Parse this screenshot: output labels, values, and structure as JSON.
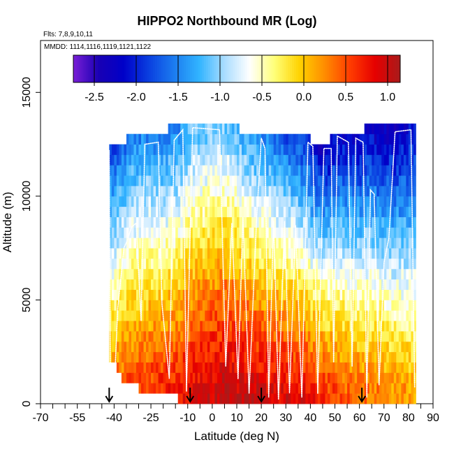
{
  "chart_data": {
    "type": "heatmap",
    "title": "HIPPO2 Northbound MR (Log)",
    "flights_label": "Flts: 7,8,9,10,11",
    "dates_label": "MMDD: 1114,1116,1119,1121,1122",
    "xlabel": "Latitude (deg N)",
    "ylabel": "Altitude (m)",
    "xlim": [
      -70,
      90
    ],
    "ylim": [
      0,
      17500
    ],
    "x_ticks": [
      -70,
      -55,
      -40,
      -25,
      -10,
      0,
      10,
      20,
      30,
      40,
      50,
      60,
      70,
      80,
      90
    ],
    "x_ticks_labeled": [
      "-70",
      "-55",
      "-40",
      "-25",
      "-10",
      "0",
      "10",
      "20",
      "30",
      "40",
      "50",
      "60",
      "70",
      "80",
      "90"
    ],
    "x_minor_ticks": [
      -65,
      -60,
      -50,
      -45,
      -35,
      -30,
      -20,
      -15,
      -5,
      5,
      15,
      25,
      35,
      45,
      55,
      65,
      75,
      85
    ],
    "y_ticks": [
      0,
      5000,
      10000,
      15000
    ],
    "y_tick_labels": [
      "0",
      "5000",
      "10000",
      "15000"
    ],
    "colorbar": {
      "range": [
        -2.75,
        1.15
      ],
      "tick_values": [
        -2.5,
        -2.0,
        -1.5,
        -1.0,
        -0.5,
        0.0,
        0.5,
        1.0
      ],
      "tick_labels": [
        "-2.5",
        "-2.0",
        "-1.5",
        "-1.0",
        "-0.5",
        "0.0",
        "0.5",
        "1.0"
      ],
      "colors": [
        "#7a1fd6",
        "#1a00b4",
        "#0000c8",
        "#0a3fe0",
        "#1c7cf0",
        "#31b4ff",
        "#a8dcff",
        "#ffffff",
        "#ffff78",
        "#ffd200",
        "#ff8c00",
        "#ff3c00",
        "#e60000",
        "#a81b1b"
      ]
    },
    "heatmap": {
      "lat_range": [
        -42,
        83
      ],
      "alt_step_m": 500,
      "profiles": [
        {
          "lat": -42,
          "top": 12200,
          "bot": 2500,
          "min": -1.9,
          "max": 0.4
        },
        {
          "lat": -35,
          "top": 12500,
          "bot": 1200,
          "min": -1.6,
          "max": 0.6
        },
        {
          "lat": -25,
          "top": 12600,
          "bot": 800,
          "min": -1.5,
          "max": 0.7
        },
        {
          "lat": -15,
          "top": 13200,
          "bot": 600,
          "min": -1.6,
          "max": 0.8
        },
        {
          "lat": -8,
          "top": 13300,
          "bot": 0,
          "min": -1.2,
          "max": 0.9
        },
        {
          "lat": 5,
          "top": 13200,
          "bot": 0,
          "min": -1.1,
          "max": 1.1
        },
        {
          "lat": 20,
          "top": 12700,
          "bot": 0,
          "min": -1.5,
          "max": 1.0
        },
        {
          "lat": 35,
          "top": 12600,
          "bot": 0,
          "min": -1.9,
          "max": 0.9
        },
        {
          "lat": 45,
          "top": 12400,
          "bot": 0,
          "min": -2.3,
          "max": 0.7
        },
        {
          "lat": 55,
          "top": 12800,
          "bot": 0,
          "min": -2.2,
          "max": 0.5
        },
        {
          "lat": 65,
          "top": 13100,
          "bot": 0,
          "min": -2.3,
          "max": 0.4
        },
        {
          "lat": 75,
          "top": 13100,
          "bot": 0,
          "min": -2.4,
          "max": 0.3
        },
        {
          "lat": 83,
          "top": 13300,
          "bot": 0,
          "min": -2.1,
          "max": 0.2
        }
      ]
    },
    "flight_tracks": [
      {
        "lat": -42.0,
        "alt": 12200
      },
      {
        "lat": -41.5,
        "alt": 300
      },
      {
        "lat": -40.0,
        "alt": 600
      },
      {
        "lat": -38.5,
        "alt": 4600
      },
      {
        "lat": -36.0,
        "alt": 7500
      },
      {
        "lat": -34.5,
        "alt": 7900
      },
      {
        "lat": -33.0,
        "alt": 8500
      },
      {
        "lat": -31.0,
        "alt": 8700
      },
      {
        "lat": -29.0,
        "alt": 4000
      },
      {
        "lat": -27.5,
        "alt": 12500
      },
      {
        "lat": -22.0,
        "alt": 12600
      },
      {
        "lat": -20.5,
        "alt": 4800
      },
      {
        "lat": -17.5,
        "alt": 1200
      },
      {
        "lat": -15.5,
        "alt": 12700
      },
      {
        "lat": -12.0,
        "alt": 13200
      },
      {
        "lat": -10.5,
        "alt": 600
      },
      {
        "lat": -8.0,
        "alt": 13300
      },
      {
        "lat": 3.0,
        "alt": 13200
      },
      {
        "lat": 5.5,
        "alt": 1800
      },
      {
        "lat": 8.0,
        "alt": 8700
      },
      {
        "lat": 10.5,
        "alt": 1200
      },
      {
        "lat": 12.5,
        "alt": 9000
      },
      {
        "lat": 15.0,
        "alt": 500
      },
      {
        "lat": 18.0,
        "alt": 8700
      },
      {
        "lat": 20.0,
        "alt": 12800
      },
      {
        "lat": 21.5,
        "alt": 12300
      },
      {
        "lat": 23.0,
        "alt": 300
      },
      {
        "lat": 25.0,
        "alt": 8800
      },
      {
        "lat": 27.0,
        "alt": 200
      },
      {
        "lat": 29.5,
        "alt": 8800
      },
      {
        "lat": 31.5,
        "alt": 500
      },
      {
        "lat": 34.0,
        "alt": 8600
      },
      {
        "lat": 36.5,
        "alt": 300
      },
      {
        "lat": 39.0,
        "alt": 12600
      },
      {
        "lat": 41.0,
        "alt": 12400
      },
      {
        "lat": 43.0,
        "alt": 500
      },
      {
        "lat": 45.5,
        "alt": 12300
      },
      {
        "lat": 48.5,
        "alt": 12300
      },
      {
        "lat": 49.5,
        "alt": 2000
      },
      {
        "lat": 51.0,
        "alt": 12900
      },
      {
        "lat": 55.5,
        "alt": 12600
      },
      {
        "lat": 57.0,
        "alt": 1800
      },
      {
        "lat": 58.5,
        "alt": 12800
      },
      {
        "lat": 61.5,
        "alt": 12600
      },
      {
        "lat": 63.0,
        "alt": 300
      },
      {
        "lat": 64.5,
        "alt": 10300
      },
      {
        "lat": 66.0,
        "alt": 10100
      },
      {
        "lat": 68.0,
        "alt": 900
      },
      {
        "lat": 70.0,
        "alt": 6800
      },
      {
        "lat": 72.0,
        "alt": 8000
      },
      {
        "lat": 74.5,
        "alt": 13100
      },
      {
        "lat": 81.0,
        "alt": 13200
      },
      {
        "lat": 82.5,
        "alt": 800
      }
    ],
    "arrows_lat": [
      -42,
      -9,
      20,
      61
    ]
  }
}
